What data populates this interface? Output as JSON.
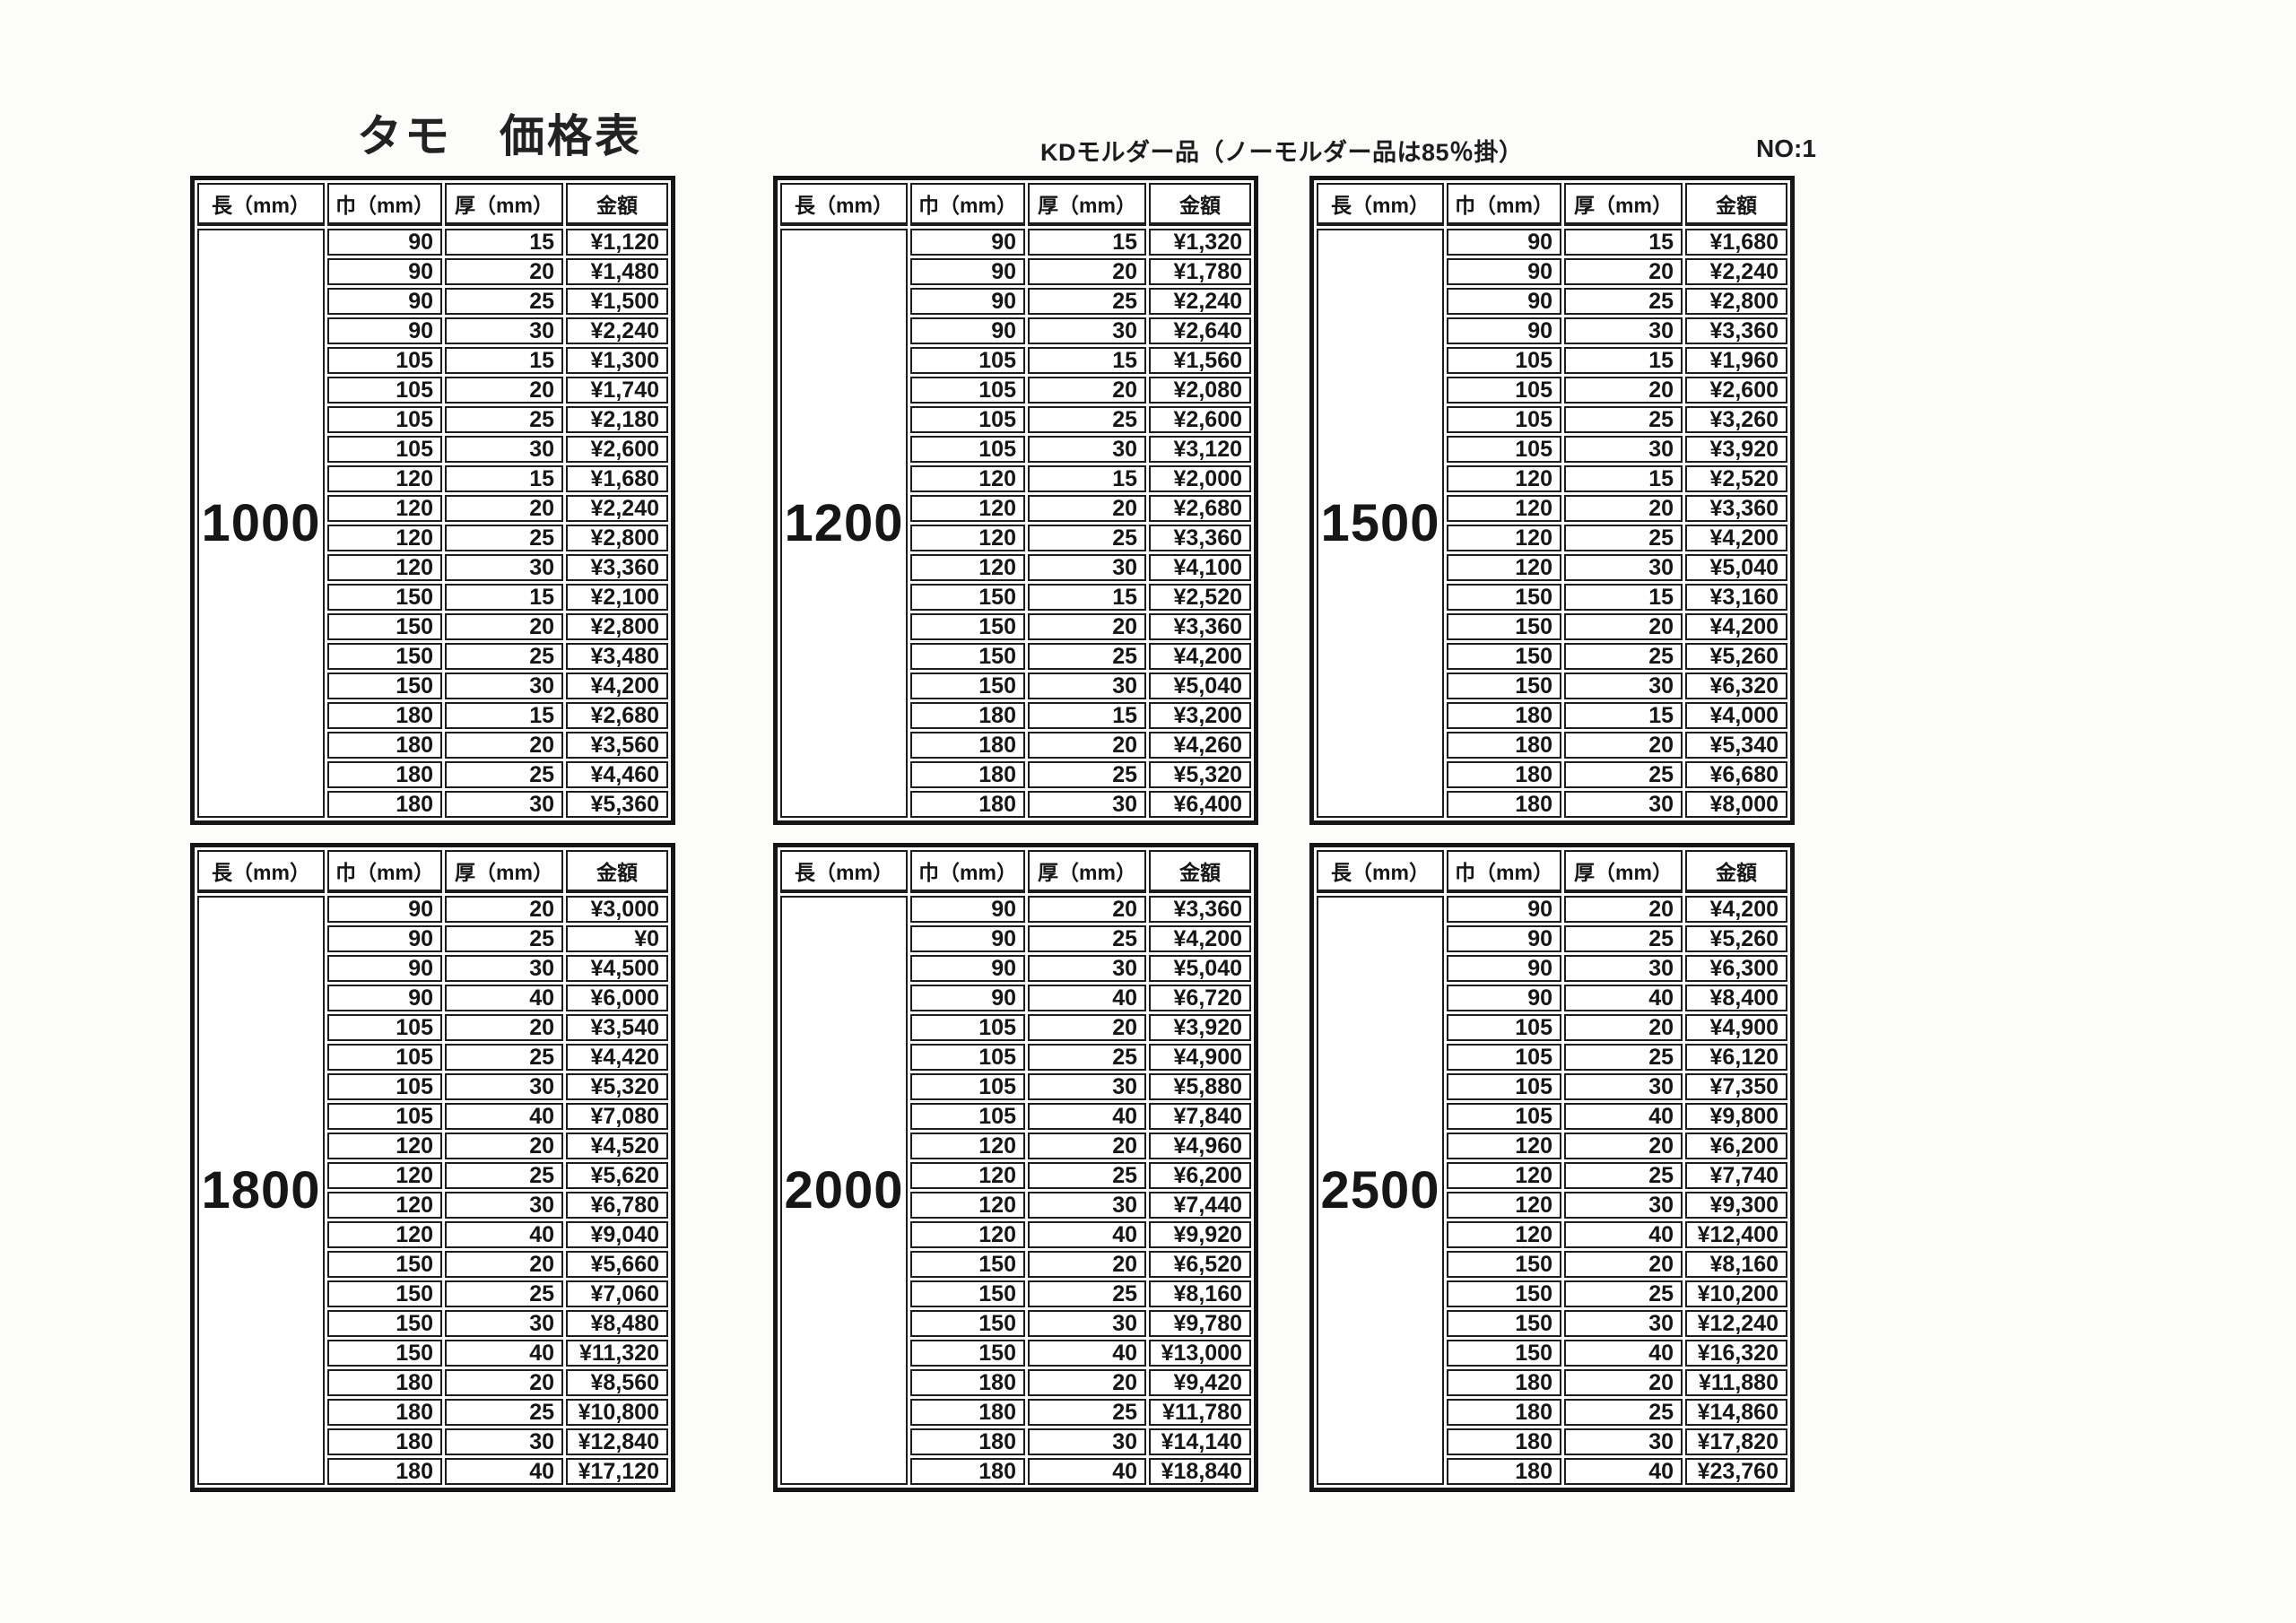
{
  "page": {
    "title": "タモ　価格表",
    "subtitle": "KDモルダー品（ノーモルダー品は85％掛）",
    "page_no": "NO:1"
  },
  "columns": [
    "長（mm）",
    "巾（mm）",
    "厚（mm）",
    "金額"
  ],
  "tables": [
    {
      "length": "1000",
      "rows": [
        [
          "90",
          "15",
          "¥1,120"
        ],
        [
          "90",
          "20",
          "¥1,480"
        ],
        [
          "90",
          "25",
          "¥1,500"
        ],
        [
          "90",
          "30",
          "¥2,240"
        ],
        [
          "105",
          "15",
          "¥1,300"
        ],
        [
          "105",
          "20",
          "¥1,740"
        ],
        [
          "105",
          "25",
          "¥2,180"
        ],
        [
          "105",
          "30",
          "¥2,600"
        ],
        [
          "120",
          "15",
          "¥1,680"
        ],
        [
          "120",
          "20",
          "¥2,240"
        ],
        [
          "120",
          "25",
          "¥2,800"
        ],
        [
          "120",
          "30",
          "¥3,360"
        ],
        [
          "150",
          "15",
          "¥2,100"
        ],
        [
          "150",
          "20",
          "¥2,800"
        ],
        [
          "150",
          "25",
          "¥3,480"
        ],
        [
          "150",
          "30",
          "¥4,200"
        ],
        [
          "180",
          "15",
          "¥2,680"
        ],
        [
          "180",
          "20",
          "¥3,560"
        ],
        [
          "180",
          "25",
          "¥4,460"
        ],
        [
          "180",
          "30",
          "¥5,360"
        ]
      ]
    },
    {
      "length": "1200",
      "rows": [
        [
          "90",
          "15",
          "¥1,320"
        ],
        [
          "90",
          "20",
          "¥1,780"
        ],
        [
          "90",
          "25",
          "¥2,240"
        ],
        [
          "90",
          "30",
          "¥2,640"
        ],
        [
          "105",
          "15",
          "¥1,560"
        ],
        [
          "105",
          "20",
          "¥2,080"
        ],
        [
          "105",
          "25",
          "¥2,600"
        ],
        [
          "105",
          "30",
          "¥3,120"
        ],
        [
          "120",
          "15",
          "¥2,000"
        ],
        [
          "120",
          "20",
          "¥2,680"
        ],
        [
          "120",
          "25",
          "¥3,360"
        ],
        [
          "120",
          "30",
          "¥4,100"
        ],
        [
          "150",
          "15",
          "¥2,520"
        ],
        [
          "150",
          "20",
          "¥3,360"
        ],
        [
          "150",
          "25",
          "¥4,200"
        ],
        [
          "150",
          "30",
          "¥5,040"
        ],
        [
          "180",
          "15",
          "¥3,200"
        ],
        [
          "180",
          "20",
          "¥4,260"
        ],
        [
          "180",
          "25",
          "¥5,320"
        ],
        [
          "180",
          "30",
          "¥6,400"
        ]
      ]
    },
    {
      "length": "1500",
      "rows": [
        [
          "90",
          "15",
          "¥1,680"
        ],
        [
          "90",
          "20",
          "¥2,240"
        ],
        [
          "90",
          "25",
          "¥2,800"
        ],
        [
          "90",
          "30",
          "¥3,360"
        ],
        [
          "105",
          "15",
          "¥1,960"
        ],
        [
          "105",
          "20",
          "¥2,600"
        ],
        [
          "105",
          "25",
          "¥3,260"
        ],
        [
          "105",
          "30",
          "¥3,920"
        ],
        [
          "120",
          "15",
          "¥2,520"
        ],
        [
          "120",
          "20",
          "¥3,360"
        ],
        [
          "120",
          "25",
          "¥4,200"
        ],
        [
          "120",
          "30",
          "¥5,040"
        ],
        [
          "150",
          "15",
          "¥3,160"
        ],
        [
          "150",
          "20",
          "¥4,200"
        ],
        [
          "150",
          "25",
          "¥5,260"
        ],
        [
          "150",
          "30",
          "¥6,320"
        ],
        [
          "180",
          "15",
          "¥4,000"
        ],
        [
          "180",
          "20",
          "¥5,340"
        ],
        [
          "180",
          "25",
          "¥6,680"
        ],
        [
          "180",
          "30",
          "¥8,000"
        ]
      ]
    },
    {
      "length": "1800",
      "rows": [
        [
          "90",
          "20",
          "¥3,000"
        ],
        [
          "90",
          "25",
          "¥0"
        ],
        [
          "90",
          "30",
          "¥4,500"
        ],
        [
          "90",
          "40",
          "¥6,000"
        ],
        [
          "105",
          "20",
          "¥3,540"
        ],
        [
          "105",
          "25",
          "¥4,420"
        ],
        [
          "105",
          "30",
          "¥5,320"
        ],
        [
          "105",
          "40",
          "¥7,080"
        ],
        [
          "120",
          "20",
          "¥4,520"
        ],
        [
          "120",
          "25",
          "¥5,620"
        ],
        [
          "120",
          "30",
          "¥6,780"
        ],
        [
          "120",
          "40",
          "¥9,040"
        ],
        [
          "150",
          "20",
          "¥5,660"
        ],
        [
          "150",
          "25",
          "¥7,060"
        ],
        [
          "150",
          "30",
          "¥8,480"
        ],
        [
          "150",
          "40",
          "¥11,320"
        ],
        [
          "180",
          "20",
          "¥8,560"
        ],
        [
          "180",
          "25",
          "¥10,800"
        ],
        [
          "180",
          "30",
          "¥12,840"
        ],
        [
          "180",
          "40",
          "¥17,120"
        ]
      ]
    },
    {
      "length": "2000",
      "rows": [
        [
          "90",
          "20",
          "¥3,360"
        ],
        [
          "90",
          "25",
          "¥4,200"
        ],
        [
          "90",
          "30",
          "¥5,040"
        ],
        [
          "90",
          "40",
          "¥6,720"
        ],
        [
          "105",
          "20",
          "¥3,920"
        ],
        [
          "105",
          "25",
          "¥4,900"
        ],
        [
          "105",
          "30",
          "¥5,880"
        ],
        [
          "105",
          "40",
          "¥7,840"
        ],
        [
          "120",
          "20",
          "¥4,960"
        ],
        [
          "120",
          "25",
          "¥6,200"
        ],
        [
          "120",
          "30",
          "¥7,440"
        ],
        [
          "120",
          "40",
          "¥9,920"
        ],
        [
          "150",
          "20",
          "¥6,520"
        ],
        [
          "150",
          "25",
          "¥8,160"
        ],
        [
          "150",
          "30",
          "¥9,780"
        ],
        [
          "150",
          "40",
          "¥13,000"
        ],
        [
          "180",
          "20",
          "¥9,420"
        ],
        [
          "180",
          "25",
          "¥11,780"
        ],
        [
          "180",
          "30",
          "¥14,140"
        ],
        [
          "180",
          "40",
          "¥18,840"
        ]
      ]
    },
    {
      "length": "2500",
      "rows": [
        [
          "90",
          "20",
          "¥4,200"
        ],
        [
          "90",
          "25",
          "¥5,260"
        ],
        [
          "90",
          "30",
          "¥6,300"
        ],
        [
          "90",
          "40",
          "¥8,400"
        ],
        [
          "105",
          "20",
          "¥4,900"
        ],
        [
          "105",
          "25",
          "¥6,120"
        ],
        [
          "105",
          "30",
          "¥7,350"
        ],
        [
          "105",
          "40",
          "¥9,800"
        ],
        [
          "120",
          "20",
          "¥6,200"
        ],
        [
          "120",
          "25",
          "¥7,740"
        ],
        [
          "120",
          "30",
          "¥9,300"
        ],
        [
          "120",
          "40",
          "¥12,400"
        ],
        [
          "150",
          "20",
          "¥8,160"
        ],
        [
          "150",
          "25",
          "¥10,200"
        ],
        [
          "150",
          "30",
          "¥12,240"
        ],
        [
          "150",
          "40",
          "¥16,320"
        ],
        [
          "180",
          "20",
          "¥11,880"
        ],
        [
          "180",
          "25",
          "¥14,860"
        ],
        [
          "180",
          "30",
          "¥17,820"
        ],
        [
          "180",
          "40",
          "¥23,760"
        ]
      ]
    }
  ]
}
